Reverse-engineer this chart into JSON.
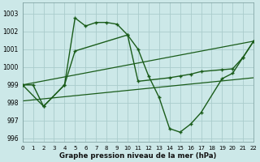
{
  "xlabel": "Graphe pression niveau de la mer (hPa)",
  "background_color": "#cce8e8",
  "grid_color": "#aacccc",
  "line_color": "#1a5c1a",
  "ylim": [
    995.8,
    1003.6
  ],
  "xlim": [
    0,
    22
  ],
  "yticks": [
    996,
    997,
    998,
    999,
    1000,
    1001,
    1002,
    1003
  ],
  "xticks": [
    0,
    1,
    2,
    3,
    4,
    5,
    6,
    7,
    8,
    9,
    10,
    11,
    12,
    13,
    14,
    15,
    16,
    17,
    18,
    19,
    20,
    21,
    22
  ],
  "series1_x": [
    0,
    1,
    2,
    4,
    5,
    6,
    7,
    8,
    9,
    10,
    11,
    12,
    13,
    14,
    15,
    16,
    17,
    19,
    20,
    21,
    22
  ],
  "series1_y": [
    999.0,
    999.0,
    997.8,
    999.0,
    1002.75,
    1002.3,
    1002.5,
    1002.5,
    1002.4,
    1001.8,
    1001.0,
    999.5,
    998.3,
    996.55,
    996.35,
    996.8,
    997.45,
    999.35,
    999.65,
    1000.55,
    1001.45
  ],
  "series2_x": [
    0,
    2,
    4,
    5,
    10,
    11,
    14,
    15,
    16,
    17,
    19,
    20,
    21,
    22
  ],
  "series2_y": [
    999.0,
    997.8,
    999.0,
    1000.9,
    1001.8,
    999.2,
    999.4,
    999.5,
    999.6,
    999.75,
    999.85,
    999.9,
    1000.55,
    1001.45
  ],
  "series3_x": [
    0,
    22
  ],
  "series3_y": [
    999.0,
    1001.45
  ],
  "series4_x": [
    0,
    22
  ],
  "series4_y": [
    998.1,
    999.4
  ]
}
